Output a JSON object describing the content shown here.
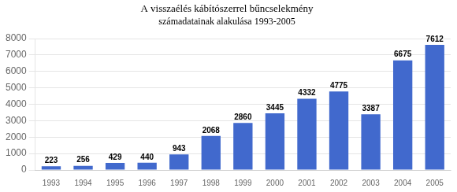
{
  "chart_data": {
    "type": "bar",
    "title": "A visszaélés kábítószerrel bűncselekmény",
    "subtitle": "számadatainak alakulása 1993-2005",
    "categories": [
      "1993",
      "1994",
      "1995",
      "1996",
      "1997",
      "1998",
      "1999",
      "2000",
      "2001",
      "2002",
      "2003",
      "2004",
      "2005"
    ],
    "values": [
      223,
      256,
      429,
      440,
      943,
      2068,
      2860,
      3445,
      4332,
      4775,
      3387,
      6675,
      7612
    ],
    "color": "#4169cd",
    "ylim": [
      0,
      8000
    ],
    "yticks": [
      0,
      1000,
      2000,
      3000,
      4000,
      5000,
      6000,
      7000,
      8000
    ],
    "grid": true,
    "data_labels": true
  }
}
